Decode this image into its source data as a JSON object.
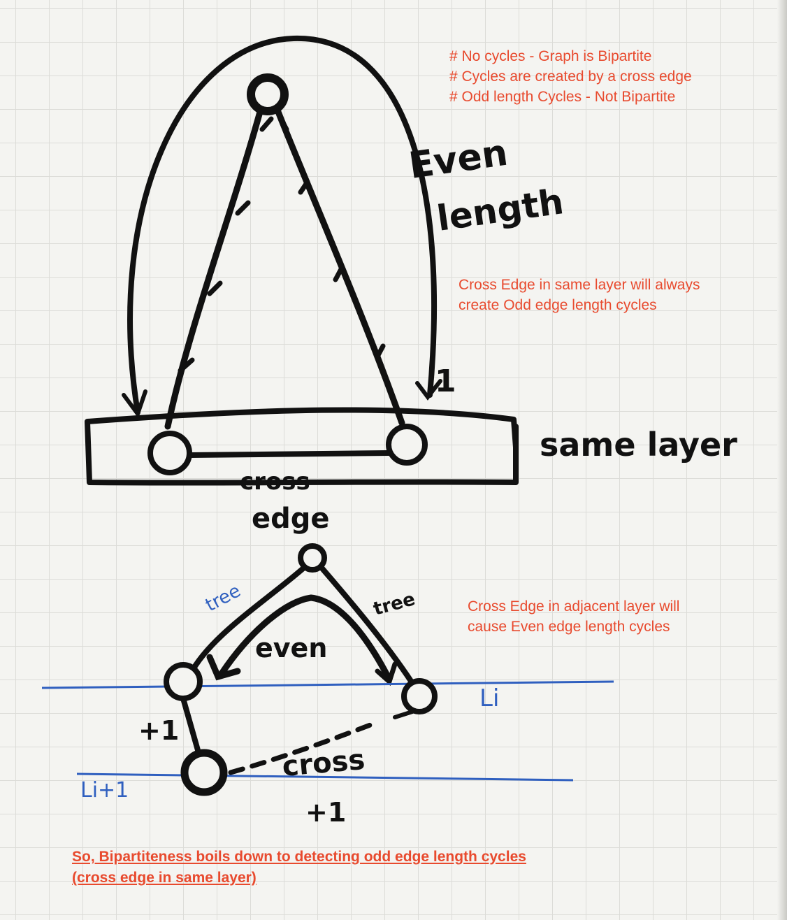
{
  "notes": {
    "top": [
      "# No cycles - Graph is Bipartite",
      "# Cycles are created by a cross edge",
      "# Odd length Cycles - Not Bipartite"
    ],
    "same_layer": [
      "Cross Edge in same layer will always",
      "create Odd edge length cycles"
    ],
    "adjacent_layer": [
      "Cross Edge in adjacent layer will",
      "cause Even edge length cycles"
    ],
    "conclusion": [
      "So, Bipartiteness boils down to detecting odd edge length cycles",
      "(cross edge in same layer)"
    ]
  },
  "handwriting": {
    "even": "Even",
    "length": "length",
    "same_layer": "same layer",
    "cross": "cross",
    "edge": "edge",
    "tree_left": "tree",
    "tree_right": "tree",
    "even_small": "even",
    "li": "Li",
    "li_plus_1": "Li+1",
    "plus_one_left": "+1",
    "cross_lower": "cross",
    "plus_one_bottom": "+1",
    "one_mark": "1"
  },
  "colors": {
    "note_text": "#e84a2e",
    "ink": "#111111",
    "layer_line": "#2f5fbf"
  }
}
